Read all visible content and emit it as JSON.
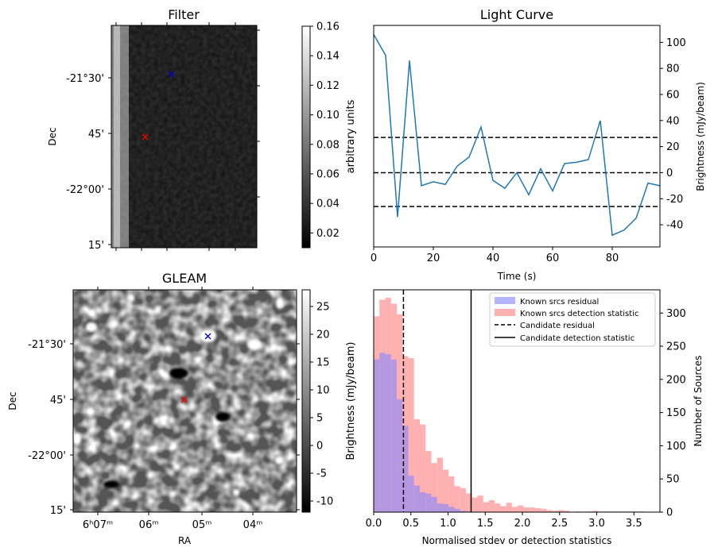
{
  "panels": {
    "filter": {
      "title": "Filter",
      "ylabel": "Dec",
      "yticks": [
        "-21°30'",
        "45'",
        "-22°00'",
        "15'"
      ],
      "colorbar": {
        "label": "arbitrary units",
        "min": 0.01,
        "max": 0.16,
        "ticks": [
          "0.02",
          "0.04",
          "0.06",
          "0.08",
          "0.10",
          "0.12",
          "0.14",
          "0.16"
        ]
      },
      "markers": [
        {
          "color": "#0000cc",
          "symbol": "x"
        },
        {
          "color": "#ff0000",
          "symbol": "x"
        }
      ]
    },
    "gleam": {
      "title": "GLEAM",
      "xlabel": "RA",
      "ylabel": "Dec",
      "xticks": [
        "6ʰ07ᵐ",
        "06ᵐ",
        "05ᵐ",
        "04ᵐ"
      ],
      "yticks": [
        "-21°30'",
        "45'",
        "-22°00'",
        "15'"
      ],
      "colorbar": {
        "label": "Brightness (mJy/beam)",
        "min": -12,
        "max": 28,
        "ticks": [
          "-10",
          "-5",
          "0",
          "5",
          "10",
          "15",
          "20",
          "25"
        ]
      },
      "markers": [
        {
          "color": "#0000cc",
          "symbol": "x"
        },
        {
          "color": "#ff0000",
          "symbol": "x"
        }
      ]
    }
  },
  "chart_data": [
    {
      "type": "line",
      "title": "Light Curve",
      "xlabel": "Time (s)",
      "ylabel": "Brightness (mJy/beam)",
      "xlim": [
        0,
        96
      ],
      "ylim": [
        -57,
        113
      ],
      "xticks": [
        0,
        20,
        40,
        60,
        80
      ],
      "yticks": [
        -40,
        -20,
        0,
        20,
        40,
        60,
        80,
        100
      ],
      "color": "#1f77b4",
      "x": [
        0,
        4,
        8,
        12,
        16,
        20,
        24,
        28,
        32,
        36,
        40,
        44,
        48,
        52,
        56,
        60,
        64,
        68,
        72,
        76,
        80,
        84,
        88,
        92,
        96
      ],
      "y": [
        106,
        90,
        -34,
        86,
        -10,
        -7,
        -9,
        5,
        12,
        35,
        -6,
        -12,
        0,
        -17,
        3,
        -14,
        7,
        8,
        10,
        40,
        -48,
        -44,
        -35,
        -8,
        -10
      ],
      "hlines": [
        {
          "y": 27,
          "style": "dashed"
        },
        {
          "y": 0,
          "style": "dashed"
        },
        {
          "y": -26,
          "style": "dashed"
        }
      ]
    },
    {
      "type": "histogram",
      "xlabel": "Normalised stdev or detection statistics",
      "ylabel": "Number of Sources",
      "xlim": [
        0,
        3.85
      ],
      "ylim": [
        0,
        335
      ],
      "xticks": [
        "0.0",
        "0.5",
        "1.0",
        "1.5",
        "2.0",
        "2.5",
        "3.0",
        "3.5"
      ],
      "yticks": [
        0,
        50,
        100,
        150,
        200,
        250,
        300
      ],
      "bin_width": 0.0775,
      "series": [
        {
          "name": "Known srcs residual",
          "color": "#8888ff",
          "start": 0.0,
          "values": [
            230,
            240,
            238,
            230,
            170,
            130,
            55,
            40,
            30,
            28,
            23,
            13,
            12,
            8,
            5,
            2,
            1
          ]
        },
        {
          "name": "Known srcs detection statistic",
          "color": "#ff9a9a",
          "start": 0.0,
          "values": [
            295,
            320,
            323,
            314,
            298,
            235,
            232,
            140,
            132,
            92,
            74,
            82,
            64,
            54,
            39,
            36,
            28,
            22,
            25,
            15,
            18,
            13,
            9,
            14,
            8,
            10,
            7,
            7,
            6,
            5,
            3,
            2,
            3,
            2,
            0,
            1,
            0,
            1,
            2,
            1,
            1,
            1,
            1,
            1,
            1,
            1,
            1
          ]
        }
      ],
      "vlines": [
        {
          "name": "Candidate residual",
          "x": 0.4,
          "style": "dashed"
        },
        {
          "name": "Candidate detection statistic",
          "x": 1.31,
          "style": "solid"
        }
      ],
      "legend_position": "top-right"
    }
  ]
}
